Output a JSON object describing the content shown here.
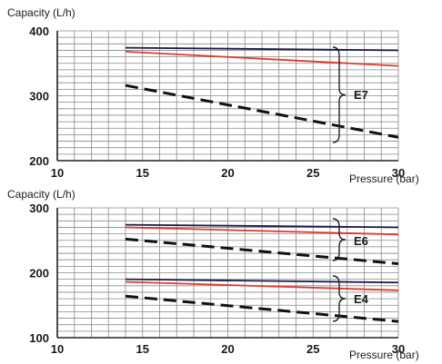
{
  "chart_data": [
    {
      "type": "line",
      "ylabel": "Capacity (L/h)",
      "xlabel": "Pressure (bar)",
      "xlim": [
        10,
        30
      ],
      "ylim": [
        200,
        400
      ],
      "xticks": [
        "10",
        "15",
        "20",
        "25",
        "30"
      ],
      "yticks": [
        "200",
        "300",
        "400"
      ],
      "grid": true,
      "groups": [
        {
          "label": "E7",
          "series": [
            {
              "style": "solid",
              "color": "#1b1b4a",
              "x": [
                14,
                30
              ],
              "y": [
                374,
                370
              ]
            },
            {
              "style": "solid",
              "color": "#e03a2e",
              "x": [
                14,
                30
              ],
              "y": [
                368,
                346
              ]
            },
            {
              "style": "dashed",
              "color": "#111111",
              "x": [
                14,
                30
              ],
              "y": [
                316,
                236
              ]
            }
          ]
        }
      ]
    },
    {
      "type": "line",
      "ylabel": "Capacity (L/h)",
      "xlabel": "Pressure (bar)",
      "xlim": [
        10,
        30
      ],
      "ylim": [
        100,
        300
      ],
      "xticks": [
        "10",
        "15",
        "20",
        "25",
        "30"
      ],
      "yticks": [
        "100",
        "200",
        "300"
      ],
      "grid": true,
      "groups": [
        {
          "label": "E6",
          "series": [
            {
              "style": "solid",
              "color": "#1b1b4a",
              "x": [
                14,
                30
              ],
              "y": [
                274,
                270
              ]
            },
            {
              "style": "solid",
              "color": "#e03a2e",
              "x": [
                14,
                30
              ],
              "y": [
                270,
                259
              ]
            },
            {
              "style": "dashed",
              "color": "#111111",
              "x": [
                14,
                30
              ],
              "y": [
                252,
                214
              ]
            }
          ]
        },
        {
          "label": "E4",
          "series": [
            {
              "style": "solid",
              "color": "#1b1b4a",
              "x": [
                14,
                30
              ],
              "y": [
                190,
                185
              ]
            },
            {
              "style": "solid",
              "color": "#e03a2e",
              "x": [
                14,
                30
              ],
              "y": [
                186,
                173
              ]
            },
            {
              "style": "dashed",
              "color": "#111111",
              "x": [
                14,
                30
              ],
              "y": [
                164,
                125
              ]
            }
          ]
        }
      ]
    }
  ]
}
